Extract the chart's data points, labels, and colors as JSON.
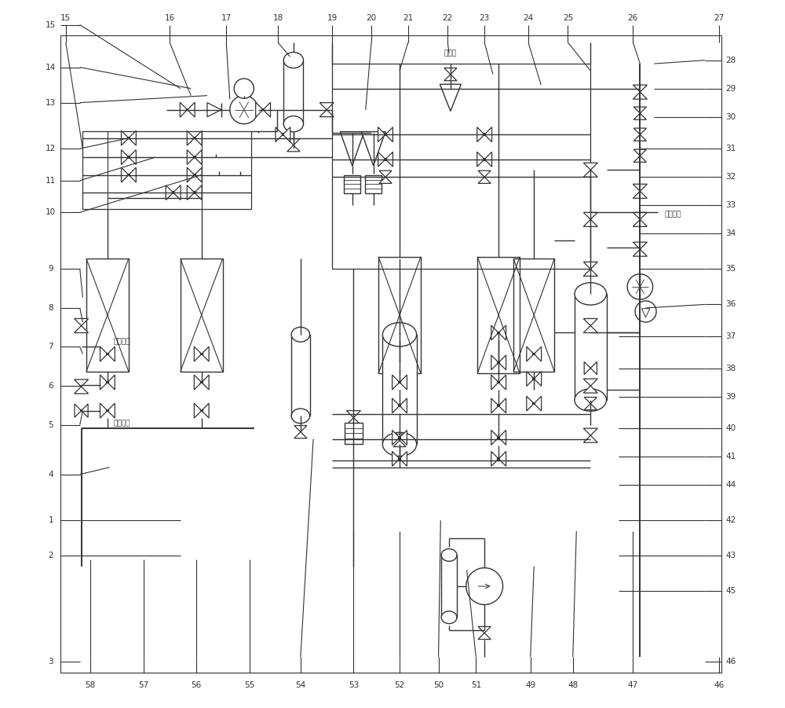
{
  "bg_color": "#ffffff",
  "lc": "#333333",
  "lw": 1.0,
  "lw_thick": 1.4,
  "fig_w": 10.0,
  "fig_h": 9.01,
  "label_fs": 7.5,
  "small_fs": 6.5,
  "left_labels": [
    [
      "15",
      0.965
    ],
    [
      "14",
      0.905
    ],
    [
      "13",
      0.855
    ],
    [
      "12",
      0.79
    ],
    [
      "11",
      0.745
    ],
    [
      "10",
      0.7
    ],
    [
      "9",
      0.62
    ],
    [
      "8",
      0.565
    ],
    [
      "7",
      0.51
    ],
    [
      "6",
      0.455
    ],
    [
      "5",
      0.4
    ],
    [
      "4",
      0.33
    ],
    [
      "1",
      0.265
    ],
    [
      "2",
      0.215
    ],
    [
      "3",
      0.065
    ]
  ],
  "right_labels": [
    [
      "28",
      0.915
    ],
    [
      "29",
      0.875
    ],
    [
      "30",
      0.835
    ],
    [
      "31",
      0.79
    ],
    [
      "32",
      0.75
    ],
    [
      "33",
      0.71
    ],
    [
      "34",
      0.67
    ],
    [
      "35",
      0.62
    ],
    [
      "36",
      0.57
    ],
    [
      "37",
      0.525
    ],
    [
      "38",
      0.48
    ],
    [
      "39",
      0.44
    ],
    [
      "40",
      0.395
    ],
    [
      "41",
      0.355
    ],
    [
      "44",
      0.315
    ],
    [
      "42",
      0.265
    ],
    [
      "43",
      0.215
    ],
    [
      "45",
      0.165
    ],
    [
      "46",
      0.065
    ]
  ],
  "top_labels": [
    [
      "15",
      0.038
    ],
    [
      "16",
      0.185
    ],
    [
      "17",
      0.265
    ],
    [
      "18",
      0.338
    ],
    [
      "19",
      0.415
    ],
    [
      "20",
      0.47
    ],
    [
      "21",
      0.522
    ],
    [
      "22",
      0.578
    ],
    [
      "23",
      0.63
    ],
    [
      "24",
      0.692
    ],
    [
      "25",
      0.748
    ],
    [
      "26",
      0.84
    ],
    [
      "27",
      0.962
    ]
  ],
  "bottom_labels": [
    [
      "58",
      0.073
    ],
    [
      "57",
      0.148
    ],
    [
      "56",
      0.222
    ],
    [
      "55",
      0.298
    ],
    [
      "54",
      0.37
    ],
    [
      "53",
      0.445
    ],
    [
      "52",
      0.51
    ],
    [
      "50",
      0.565
    ],
    [
      "51",
      0.618
    ],
    [
      "49",
      0.695
    ],
    [
      "48",
      0.755
    ],
    [
      "47",
      0.84
    ],
    [
      "46",
      0.962
    ]
  ]
}
